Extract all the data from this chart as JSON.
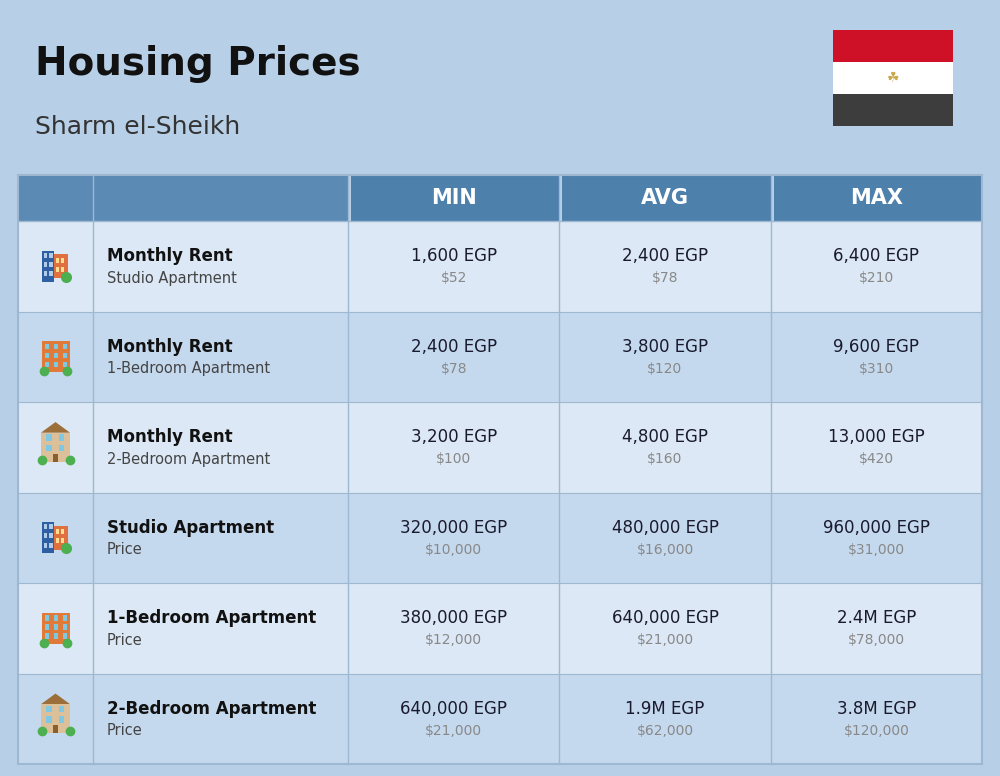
{
  "title": "Housing Prices",
  "subtitle": "Sharm el-Sheikh",
  "background_color": "#b8cfe8",
  "header_bg_color": "#5b8ab5",
  "header_text_color": "#ffffff",
  "row_bg_even": "#dce8f5",
  "row_bg_odd": "#c5d9ee",
  "col_headers": [
    "MIN",
    "AVG",
    "MAX"
  ],
  "rows": [
    {
      "bold_label": "Monthly Rent",
      "sub_label": "Studio Apartment",
      "min_egp": "1,600 EGP",
      "min_usd": "$52",
      "avg_egp": "2,400 EGP",
      "avg_usd": "$78",
      "max_egp": "6,400 EGP",
      "max_usd": "$210",
      "icon_type": "studio_blue"
    },
    {
      "bold_label": "Monthly Rent",
      "sub_label": "1-Bedroom Apartment",
      "min_egp": "2,400 EGP",
      "min_usd": "$78",
      "avg_egp": "3,800 EGP",
      "avg_usd": "$120",
      "max_egp": "9,600 EGP",
      "max_usd": "$310",
      "icon_type": "one_bed_orange"
    },
    {
      "bold_label": "Monthly Rent",
      "sub_label": "2-Bedroom Apartment",
      "min_egp": "3,200 EGP",
      "min_usd": "$100",
      "avg_egp": "4,800 EGP",
      "avg_usd": "$160",
      "max_egp": "13,000 EGP",
      "max_usd": "$420",
      "icon_type": "two_bed_beige"
    },
    {
      "bold_label": "Studio Apartment",
      "sub_label": "Price",
      "min_egp": "320,000 EGP",
      "min_usd": "$10,000",
      "avg_egp": "480,000 EGP",
      "avg_usd": "$16,000",
      "max_egp": "960,000 EGP",
      "max_usd": "$31,000",
      "icon_type": "studio_blue"
    },
    {
      "bold_label": "1-Bedroom Apartment",
      "sub_label": "Price",
      "min_egp": "380,000 EGP",
      "min_usd": "$12,000",
      "avg_egp": "640,000 EGP",
      "avg_usd": "$21,000",
      "max_egp": "2.4M EGP",
      "max_usd": "$78,000",
      "icon_type": "one_bed_orange"
    },
    {
      "bold_label": "2-Bedroom Apartment",
      "sub_label": "Price",
      "min_egp": "640,000 EGP",
      "min_usd": "$21,000",
      "avg_egp": "1.9M EGP",
      "avg_usd": "$62,000",
      "max_egp": "3.8M EGP",
      "max_usd": "$120,000",
      "icon_type": "two_bed_brown"
    }
  ],
  "flag_colors": [
    "#ce1126",
    "#ffffff",
    "#3d3d3d"
  ],
  "flag_eagle_color": "#c8a84b"
}
